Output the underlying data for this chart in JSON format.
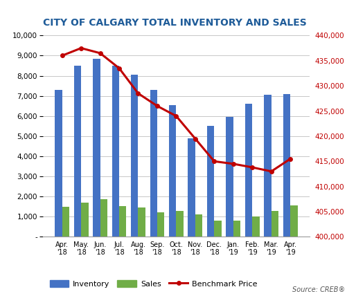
{
  "title": "CITY OF CALGARY TOTAL INVENTORY AND SALES",
  "categories": [
    "Apr.\n'18",
    "May.\n'18",
    "Jun.\n'18",
    "Jul.\n'18",
    "Aug.\n'18",
    "Sep.\n'18",
    "Oct.\n'18",
    "Nov.\n'18",
    "Dec.\n'18",
    "Jan.\n'19",
    "Feb.\n'19",
    "Mar.\n'19",
    "Apr.\n'19"
  ],
  "inventory": [
    7300,
    8500,
    8850,
    8500,
    8050,
    7300,
    6550,
    4900,
    5500,
    5950,
    6600,
    7050,
    7100
  ],
  "sales": [
    1480,
    1700,
    1870,
    1530,
    1450,
    1230,
    1280,
    1100,
    800,
    800,
    1000,
    1300,
    1550
  ],
  "benchmark_price": [
    436000,
    437500,
    436500,
    433500,
    428500,
    426000,
    424000,
    419500,
    415000,
    414500,
    413800,
    413000,
    415500
  ],
  "inventory_color": "#4472c4",
  "sales_color": "#70ad47",
  "line_color": "#c00000",
  "title_color": "#1f5c99",
  "left_ylim": [
    0,
    10000
  ],
  "right_ylim": [
    400000,
    440000
  ],
  "left_yticks": [
    0,
    1000,
    2000,
    3000,
    4000,
    5000,
    6000,
    7000,
    8000,
    9000,
    10000
  ],
  "right_yticks": [
    400000,
    405000,
    410000,
    415000,
    420000,
    425000,
    430000,
    435000,
    440000
  ],
  "source_text": "Source: CREB®",
  "background_color": "#ffffff"
}
